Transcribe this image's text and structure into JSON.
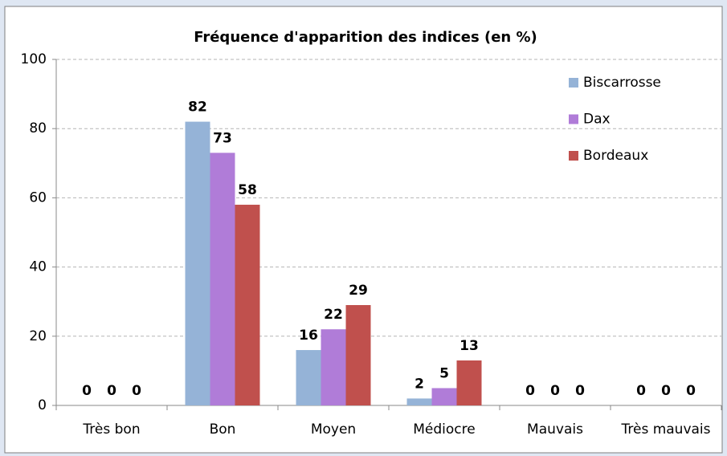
{
  "chart_data": {
    "type": "bar",
    "title": "Fréquence d'apparition des indices (en %)",
    "categories": [
      "Très bon",
      "Bon",
      "Moyen",
      "Médiocre",
      "Mauvais",
      "Très mauvais"
    ],
    "series": [
      {
        "name": "Biscarrosse",
        "color": "#95b3d7",
        "values": [
          0,
          82,
          16,
          2,
          0,
          0
        ]
      },
      {
        "name": "Dax",
        "color": "#b07cd8",
        "values": [
          0,
          73,
          22,
          5,
          0,
          0
        ]
      },
      {
        "name": "Bordeaux",
        "color": "#c0504d",
        "values": [
          0,
          58,
          29,
          13,
          0,
          0
        ]
      }
    ],
    "ylim": [
      0,
      100
    ],
    "yticks": [
      0,
      20,
      40,
      60,
      80,
      100
    ],
    "grid": true,
    "legend": "top-right"
  }
}
